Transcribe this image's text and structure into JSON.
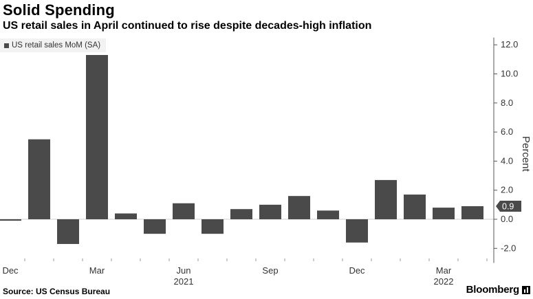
{
  "header": {
    "title": "Solid Spending",
    "subtitle": "US retail sales in April continued to rise despite decades-high inflation"
  },
  "footer": {
    "source": "Source: US Census Bureau",
    "brand": "Bloomberg"
  },
  "colors": {
    "bar": "#4a4a4a",
    "axis": "#555555",
    "label_box": "#4a4a4a"
  },
  "chart_data": {
    "type": "bar",
    "title": "Solid Spending",
    "subtitle": "US retail sales in April continued to rise despite decades-high inflation",
    "legend": [
      "US retail sales MoM (SA)"
    ],
    "legend_placement": "top-left",
    "ylabel": "Percent",
    "ylim": [
      -3,
      12.5
    ],
    "yticks": [
      -2.0,
      0.0,
      2.0,
      4.0,
      6.0,
      8.0,
      10.0,
      12.0
    ],
    "yaxis_side": "right",
    "grid": false,
    "categories": [
      "Dec 2020",
      "Jan 2021",
      "Feb 2021",
      "Mar 2021",
      "Apr 2021",
      "May 2021",
      "Jun 2021",
      "Jul 2021",
      "Aug 2021",
      "Sep 2021",
      "Oct 2021",
      "Nov 2021",
      "Dec 2021",
      "Jan 2022",
      "Feb 2022",
      "Mar 2022",
      "Apr 2022"
    ],
    "series": [
      {
        "name": "US retail sales MoM (SA)",
        "values": [
          -0.1,
          5.5,
          -1.7,
          11.3,
          0.4,
          -1.0,
          1.1,
          -1.0,
          0.7,
          1.0,
          1.6,
          0.6,
          -1.6,
          2.7,
          1.7,
          0.8,
          0.9
        ]
      }
    ],
    "xtick_labels": [
      {
        "index": 0,
        "label": "Dec"
      },
      {
        "index": 3,
        "label": "Mar"
      },
      {
        "index": 6,
        "label": "Jun",
        "year": "2021"
      },
      {
        "index": 9,
        "label": "Sep"
      },
      {
        "index": 12,
        "label": "Dec"
      },
      {
        "index": 15,
        "label": "Mar",
        "year": "2022"
      }
    ],
    "last_value_label": "0.9"
  }
}
